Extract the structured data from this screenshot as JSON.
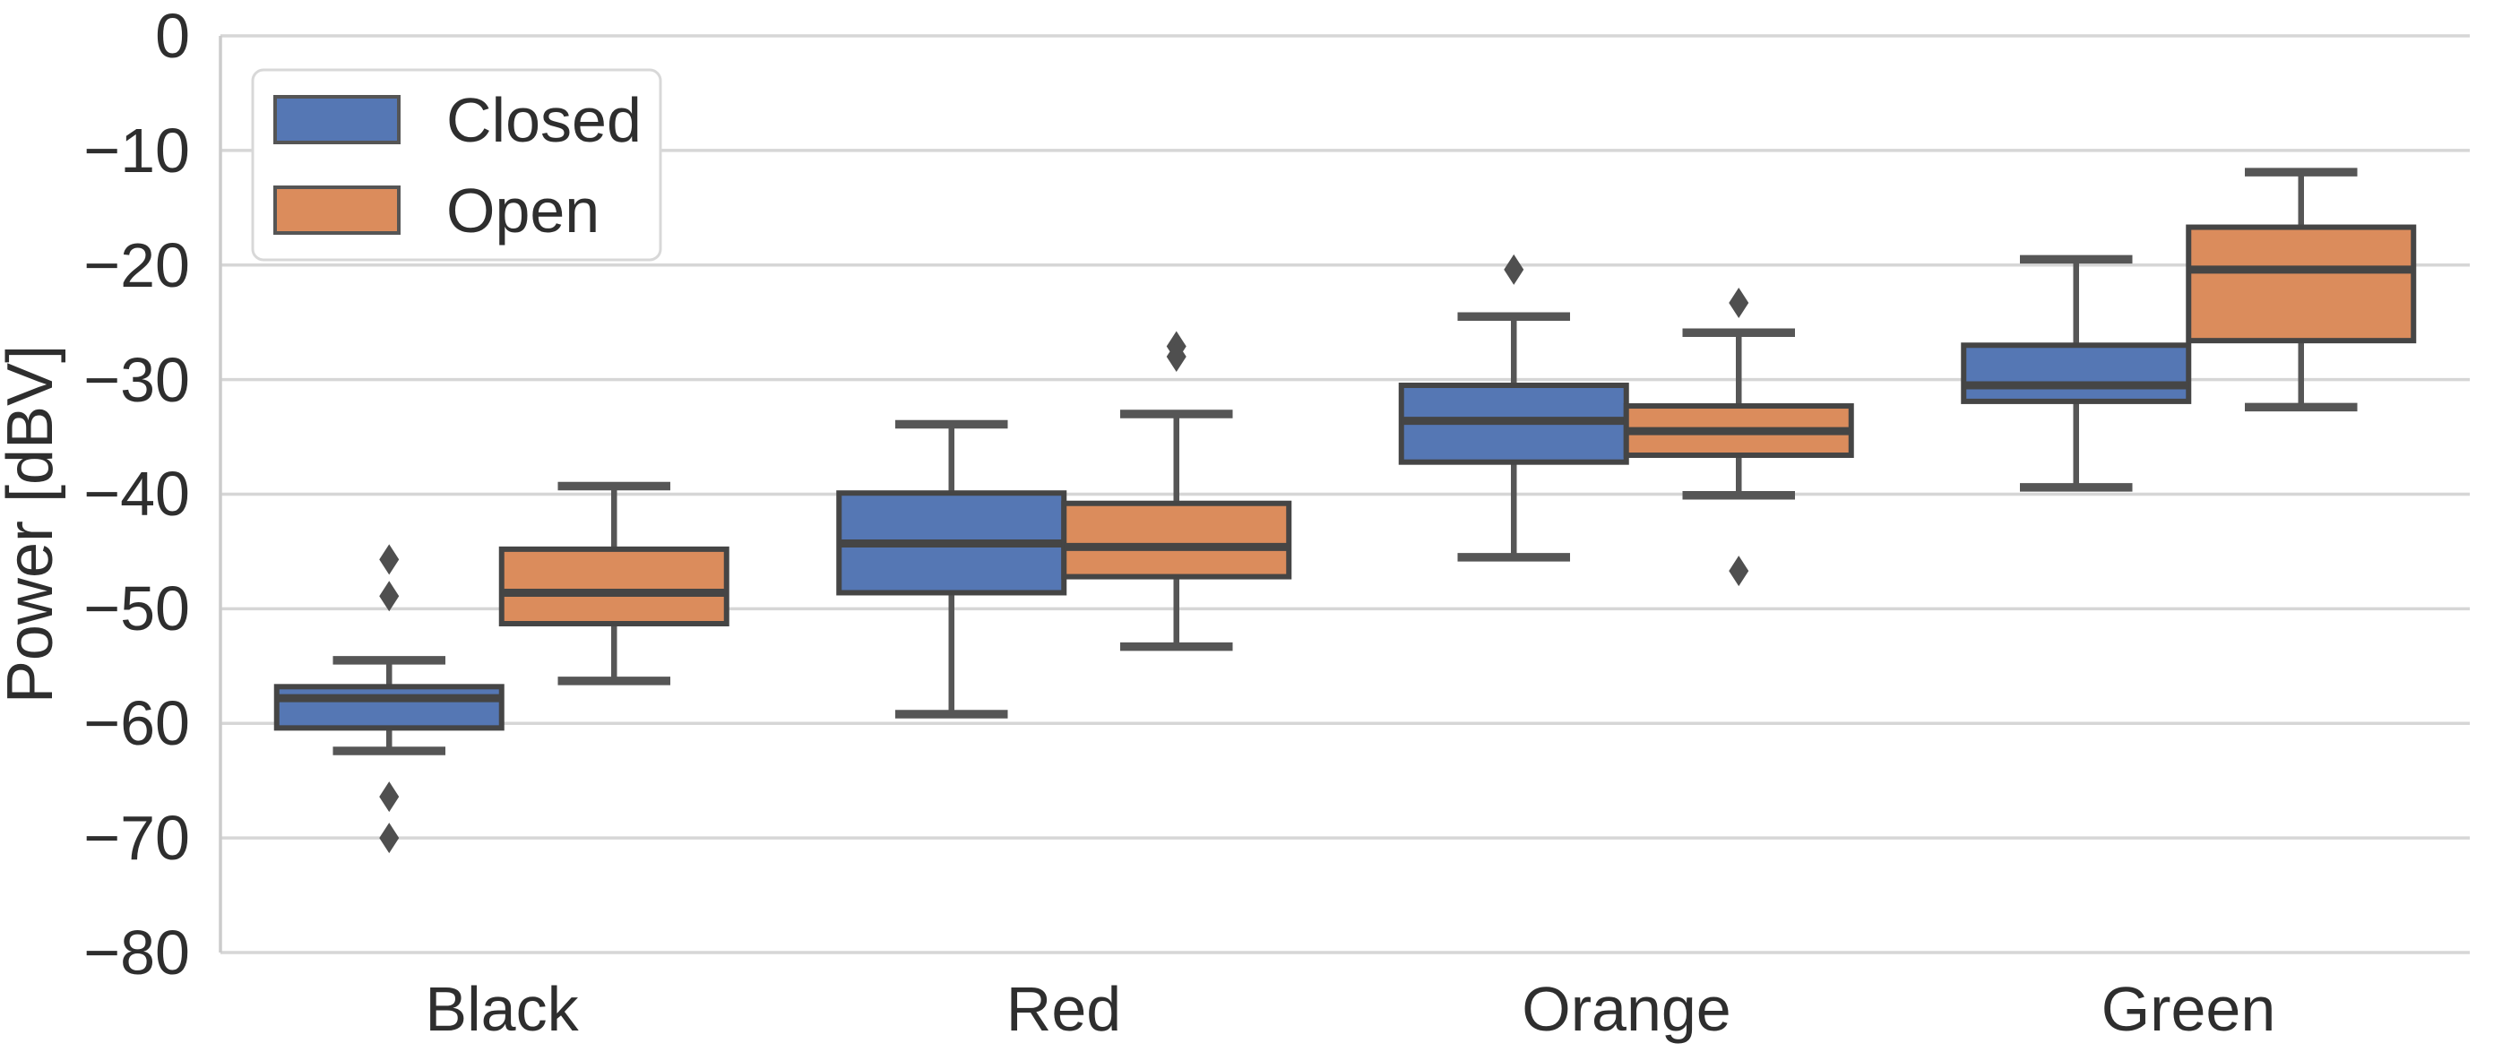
{
  "chart_data": {
    "type": "boxplot",
    "title": "",
    "xlabel": "",
    "ylabel": "Power [dBV]",
    "ylim": [
      -80,
      0
    ],
    "yticks": [
      0,
      -10,
      -20,
      -30,
      -40,
      -50,
      -60,
      -70,
      -80
    ],
    "ytick_labels": [
      "0",
      "−10",
      "−20",
      "−30",
      "−40",
      "−50",
      "−60",
      "−70",
      "−80"
    ],
    "categories": [
      "Black",
      "Red",
      "Orange",
      "Green"
    ],
    "grid": "horizontal",
    "background": "#ffffff",
    "legend": {
      "position": "upper left",
      "entries": [
        {
          "label": "Closed",
          "color": "#5577B4"
        },
        {
          "label": "Open",
          "color": "#DB8C5C"
        }
      ]
    },
    "style": {
      "box_edge_color": "#454545",
      "whisker_color": "#565656",
      "outlier_color": "#4f4f4f",
      "gridline_color": "#d6d6d6",
      "spine_color": "#cccccc",
      "text_color": "#2e2e2e"
    },
    "series": [
      {
        "name": "Closed",
        "color": "#5577B4",
        "boxes": [
          {
            "category": "Black",
            "whisker_low": -62.4,
            "q1": -60.4,
            "median": -57.8,
            "q3": -56.8,
            "whisker_high": -54.5,
            "outliers": [
              -45.7,
              -48.9,
              -66.4,
              -70.0
            ]
          },
          {
            "category": "Red",
            "whisker_low": -59.2,
            "q1": -48.6,
            "median": -44.3,
            "q3": -39.9,
            "whisker_high": -33.9,
            "outliers": []
          },
          {
            "category": "Orange",
            "whisker_low": -45.5,
            "q1": -37.2,
            "median": -33.6,
            "q3": -30.5,
            "whisker_high": -24.5,
            "outliers": [
              -20.4
            ]
          },
          {
            "category": "Green",
            "whisker_low": -39.4,
            "q1": -31.9,
            "median": -30.5,
            "q3": -27.0,
            "whisker_high": -19.5,
            "outliers": []
          }
        ]
      },
      {
        "name": "Open",
        "color": "#DB8C5C",
        "boxes": [
          {
            "category": "Black",
            "whisker_low": -56.3,
            "q1": -51.3,
            "median": -48.6,
            "q3": -44.8,
            "whisker_high": -39.3,
            "outliers": []
          },
          {
            "category": "Red",
            "whisker_low": -53.3,
            "q1": -47.2,
            "median": -44.6,
            "q3": -40.8,
            "whisker_high": -33.0,
            "outliers": [
              -27.1,
              -28.0
            ]
          },
          {
            "category": "Orange",
            "whisker_low": -40.1,
            "q1": -36.6,
            "median": -34.5,
            "q3": -32.3,
            "whisker_high": -25.9,
            "outliers": [
              -23.3,
              -46.7
            ]
          },
          {
            "category": "Green",
            "whisker_low": -32.4,
            "q1": -26.6,
            "median": -20.4,
            "q3": -16.7,
            "whisker_high": -11.9,
            "outliers": []
          }
        ]
      }
    ]
  }
}
